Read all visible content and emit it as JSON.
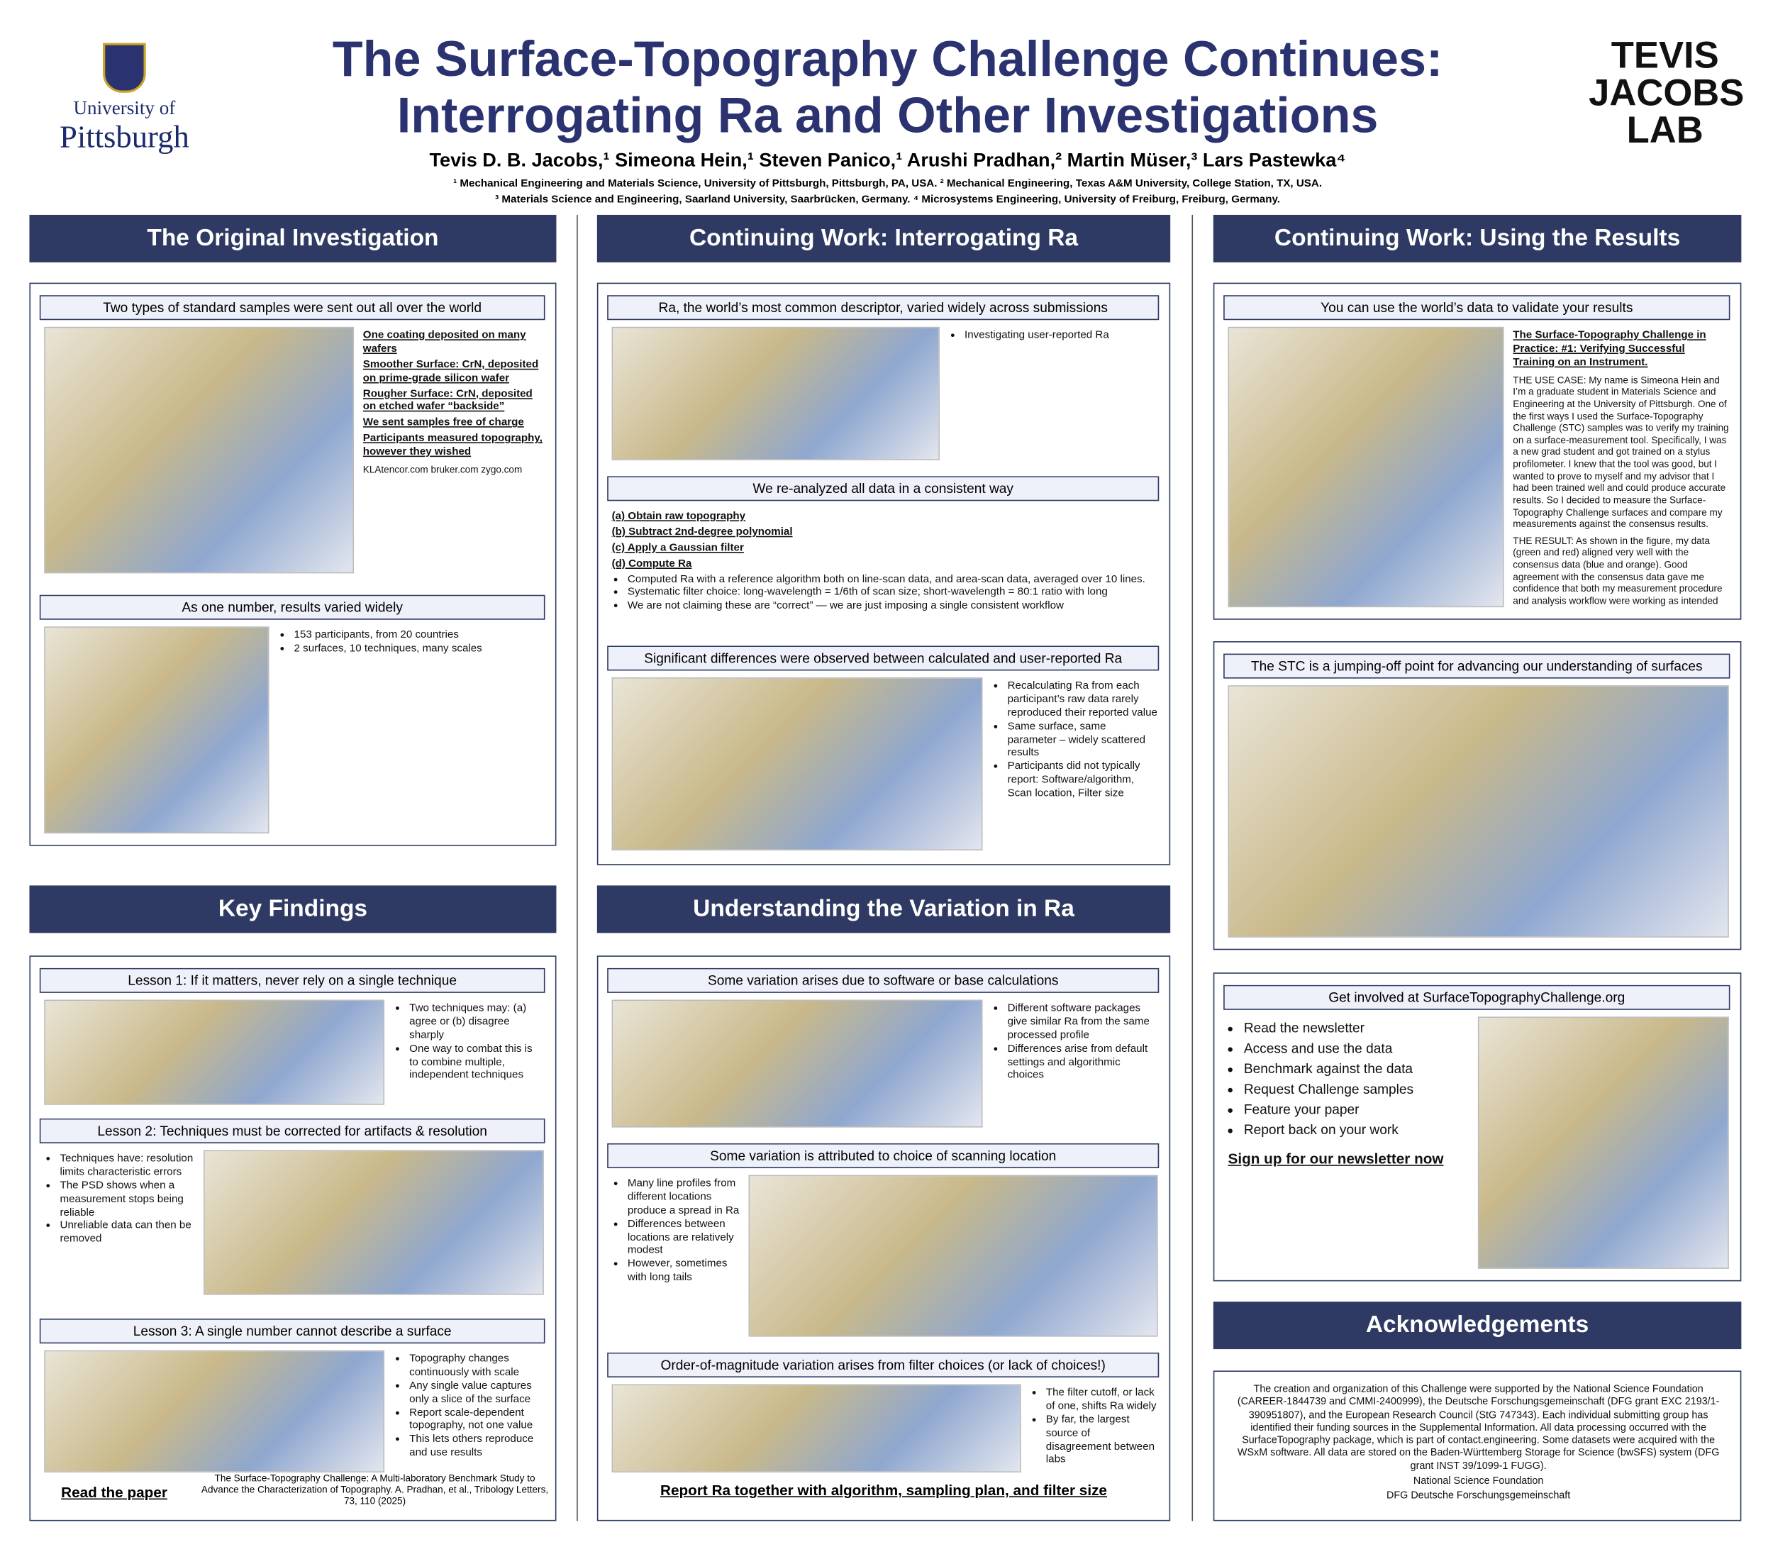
{
  "header": {
    "university": [
      "University of",
      "Pittsburgh"
    ],
    "title": [
      "The Surface-Topography Challenge Continues:",
      "Interrogating Ra and Other Investigations"
    ],
    "authors": "Tevis D. B. Jacobs,¹ Simeona Hein,¹ Steven Panico,¹ Arushi Pradhan,² Martin Müser,³ Lars Pastewka⁴",
    "affiliations": [
      "¹ Mechanical Engineering and Materials Science, University of Pittsburgh, Pittsburgh, PA, USA.  ² Mechanical Engineering, Texas A&M University, College Station, TX, USA.",
      "³ Materials Science and Engineering, Saarland University, Saarbrücken, Germany. ⁴ Microsystems Engineering, University of Freiburg, Freiburg, Germany."
    ],
    "lab": [
      "TEVIS",
      "JACOBS",
      "LAB"
    ]
  },
  "sections": [
    {
      "title": "The Original Investigation",
      "panels": [
        {
          "subpanels": [
            {
              "subtitle": "Two types of standard samples were sent out all over the world",
              "labels": [
                "One coating deposited on many wafers",
                "Smoother Surface: CrN, deposited on prime-grade silicon wafer",
                "Rougher Surface: CrN, deposited on etched wafer “backside”",
                "We sent samples free of charge",
                "Participants measured topography, however they wished"
              ],
              "bullets": [],
              "text": [
                "KLAtencor.com   bruker.com   zygo.com"
              ]
            },
            {
              "subtitle": "As one number, results varied widely",
              "labels": [],
              "bullets": [
                "153 participants, from 20 countries",
                "2 surfaces, 10 techniques, many scales"
              ],
              "text": []
            }
          ]
        }
      ],
      "footer": []
    },
    {
      "title": "Continuing Work: Interrogating Ra",
      "panels": [
        {
          "subpanels": [
            {
              "subtitle": "Ra, the world’s most common descriptor, varied widely across submissions",
              "labels": [],
              "bullets": [
                "Investigating user-reported Ra"
              ],
              "text": []
            },
            {
              "subtitle": "We re-analyzed all data in a consistent way",
              "labels": [
                "(a) Obtain raw topography",
                "(b) Subtract 2nd-degree polynomial",
                "(c) Apply a Gaussian filter",
                "(d) Compute Ra"
              ],
              "bullets": [
                "Computed Ra with a reference algorithm both on line-scan data, and area-scan data, averaged over 10 lines.",
                "Systematic filter choice: long-wavelength = 1/6th of scan size; short-wavelength = 80:1 ratio with long",
                "We are not claiming these are “correct” — we are just imposing a single consistent workflow"
              ],
              "text": []
            },
            {
              "subtitle": "Significant differences were observed between calculated and user-reported Ra",
              "labels": [],
              "bullets": [
                "Recalculating Ra from each participant’s raw data rarely reproduced their reported value",
                "Same surface, same parameter – widely scattered results",
                "Participants did not typically report: Software/algorithm, Scan location, Filter size"
              ],
              "text": []
            }
          ]
        }
      ],
      "footer": []
    },
    {
      "title": "Continuing Work: Using the Results",
      "panels": [
        {
          "subpanels": [
            {
              "subtitle": "You can use the world’s data to validate your results",
              "labels": [
                "The Surface-Topography Challenge in Practice: #1: Verifying Successful Training on an Instrument."
              ],
              "bullets": [],
              "text": [
                "THE USE CASE: My name is Simeona Hein and I’m a graduate student in Materials Science and Engineering at the University of Pittsburgh. One of the first ways I used the Surface-Topography Challenge (STC) samples was to verify my training on a surface-measurement tool. Specifically, I was a new grad student and got trained on a stylus profilometer. I knew that the tool was good, but I wanted to prove to myself and my advisor that I had been trained well and could produce accurate results. So I decided to measure the Surface-Topography Challenge surfaces and compare my measurements against the consensus results.",
                "THE RESULT: As shown in the figure, my data (green and red) aligned very well with the consensus data (blue and orange). Good agreement with the consensus data gave me confidence that both my measurement procedure and analysis workflow were working as intended before moving on to unknown samples."
              ]
            }
          ]
        },
        {
          "subpanels": [
            {
              "subtitle": "The STC is a jumping-off point for advancing our understanding of surfaces",
              "labels": [],
              "bullets": [],
              "text": []
            }
          ]
        },
        {
          "subpanels": [
            {
              "subtitle": "Get involved at SurfaceTopographyChallenge.org",
              "labels": [],
              "bullets": [
                "Read the newsletter",
                "Access and use the data",
                "Benchmark against the data",
                "Request Challenge samples",
                "Feature your paper",
                "Report back on your work"
              ],
              "text": [
                "Sign up for our newsletter now"
              ]
            }
          ]
        }
      ],
      "footer": []
    },
    {
      "title": "Key Findings",
      "panels": [
        {
          "subpanels": [
            {
              "subtitle": "Lesson 1: If it matters, never rely on a single technique",
              "labels": [],
              "bullets": [
                "Two techniques may: (a) agree or (b) disagree sharply",
                "One way to combat this is to combine multiple, independent techniques"
              ],
              "text": []
            },
            {
              "subtitle": "Lesson 2: Techniques must be corrected for artifacts & resolution",
              "labels": [],
              "bullets": [
                "Techniques have: resolution limits characteristic errors",
                "The PSD shows when a measurement stops being reliable",
                "Unreliable data can then be removed"
              ],
              "text": []
            },
            {
              "subtitle": "Lesson 3: A single number cannot describe a surface",
              "labels": [],
              "bullets": [
                "Topography changes continuously with scale",
                "Any single value captures only a slice of the surface",
                "Report scale-dependent topography, not one value",
                "This lets others reproduce and use results"
              ],
              "text": []
            }
          ]
        }
      ],
      "footer": [
        "Read the paper",
        "The Surface-Topography Challenge: A Multi-laboratory Benchmark Study to Advance the Characterization of Topography. A. Pradhan, et al., Tribology Letters, 73, 110 (2025)"
      ]
    },
    {
      "title": "Understanding the Variation in Ra",
      "panels": [
        {
          "subpanels": [
            {
              "subtitle": "Some variation arises due to software or base calculations",
              "labels": [],
              "bullets": [
                "Different software packages give similar Ra from the same processed profile",
                "Differences arise from default settings and algorithmic choices"
              ],
              "text": []
            },
            {
              "subtitle": "Some variation is attributed to choice of scanning location",
              "labels": [],
              "bullets": [
                "Many line profiles from different locations produce a spread in Ra",
                "Differences between locations are relatively modest",
                "However, sometimes with long tails"
              ],
              "text": []
            },
            {
              "subtitle": "Order-of-magnitude variation arises from filter choices (or lack of choices!)",
              "labels": [],
              "bullets": [
                "The filter cutoff, or lack of one, shifts Ra widely",
                "By far, the largest source of disagreement between labs"
              ],
              "text": []
            }
          ]
        }
      ],
      "footer": [
        "Report Ra together with algorithm, sampling plan, and filter size"
      ]
    },
    {
      "title": "Acknowledgements",
      "panels": [
        {
          "subpanels": [
            {
              "subtitle": "",
              "labels": [],
              "bullets": [],
              "text": [
                "The creation and organization of this Challenge were supported by the National Science Foundation (CAREER-1844739 and CMMI-2400999), the Deutsche Forschungsgemeinschaft (DFG grant EXC 2193/1-390951807), and the European Research Council (StG 747343). Each individual submitting group has identified their funding sources in the Supplemental Information. All data processing occurred with the SurfaceTopography package, which is part of contact.engineering. Some datasets were acquired with the WSxM software. All data are stored on the Baden-Württemberg Storage for Science (bwSFS) system (DFG grant INST 39/1099-1 FUGG).",
                "National Science Foundation",
                "DFG Deutsche Forschungsgemeinschaft"
              ]
            }
          ]
        }
      ],
      "footer": []
    }
  ]
}
